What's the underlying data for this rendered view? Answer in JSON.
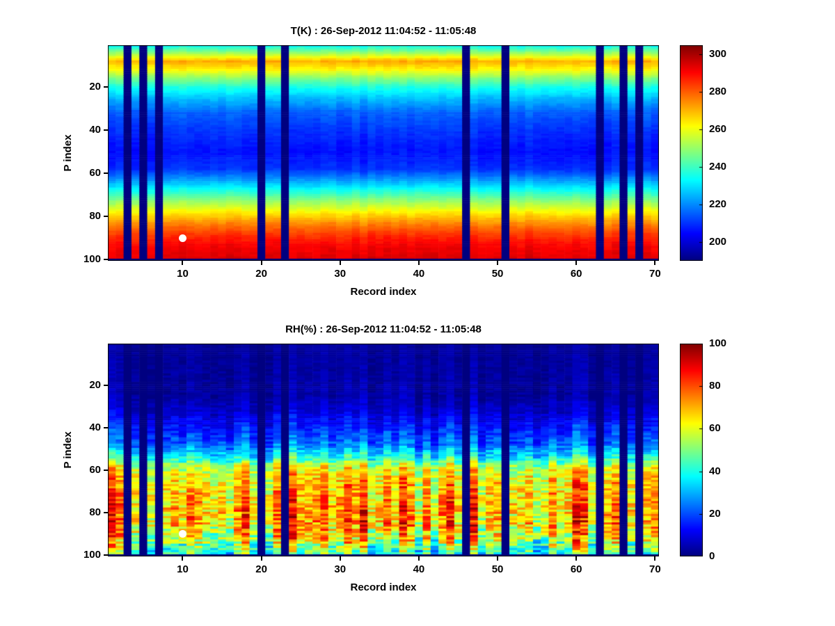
{
  "colors": {
    "background": "#ffffff",
    "axis": "#000000",
    "text": "#000000",
    "marker": "#ffffff"
  },
  "chart_data": [
    {
      "type": "heatmap",
      "id": "temperature",
      "title": "T(K) : 26-Sep-2012 11:04:52 - 11:05:48",
      "xlabel": "Record index",
      "ylabel": "P index",
      "x_ticks": [
        10,
        20,
        30,
        40,
        50,
        60,
        70
      ],
      "y_ticks": [
        20,
        40,
        60,
        80,
        100
      ],
      "x_range": [
        1,
        70
      ],
      "y_range": [
        1,
        100
      ],
      "n_records": 70,
      "n_levels": 100,
      "colormap": "jet",
      "clim": [
        190,
        305
      ],
      "colorbar_ticks": [
        200,
        220,
        240,
        260,
        280,
        300
      ],
      "missing_records": [
        3,
        5,
        7,
        20,
        23,
        46,
        51,
        63,
        66,
        68
      ],
      "missing_bottom_rows": 1,
      "marker": {
        "record": 10,
        "p_index": 90,
        "color": "#ffffff"
      },
      "profile": {
        "comment": "vertical T(K) profile vs P index, interpolated per row",
        "p_index": [
          1,
          4,
          8,
          12,
          16,
          20,
          25,
          32,
          42,
          50,
          58,
          63,
          68,
          73,
          78,
          83,
          88,
          93,
          99
        ],
        "value": [
          235,
          250,
          271,
          262,
          248,
          236,
          226,
          215,
          209,
          206,
          210,
          222,
          236,
          250,
          263,
          275,
          284,
          291,
          294
        ]
      },
      "noise": {
        "p_index": [
          1,
          100
        ],
        "amplitude": [
          2,
          2
        ]
      }
    },
    {
      "type": "heatmap",
      "id": "relative-humidity",
      "title": "RH(%) : 26-Sep-2012 11:04:52 - 11:05:48",
      "xlabel": "Record index",
      "ylabel": "P index",
      "x_ticks": [
        10,
        20,
        30,
        40,
        50,
        60,
        70
      ],
      "y_ticks": [
        20,
        40,
        60,
        80,
        100
      ],
      "x_range": [
        1,
        70
      ],
      "y_range": [
        1,
        100
      ],
      "n_records": 70,
      "n_levels": 100,
      "colormap": "jet",
      "clim": [
        0,
        100
      ],
      "colorbar_ticks": [
        0,
        20,
        40,
        60,
        80,
        100
      ],
      "missing_records": [
        3,
        5,
        7,
        20,
        23,
        46,
        51,
        63,
        66,
        68
      ],
      "missing_bottom_rows": 1,
      "marker": {
        "record": 10,
        "p_index": 90,
        "color": "#ffffff"
      },
      "profile": {
        "comment": "vertical RH(%) profile vs P index, interpolated per row",
        "p_index": [
          1,
          25,
          33,
          40,
          48,
          54,
          58,
          63,
          70,
          78,
          85,
          92,
          97,
          99
        ],
        "value": [
          3,
          4,
          9,
          16,
          24,
          40,
          58,
          66,
          70,
          73,
          72,
          62,
          50,
          45
        ]
      },
      "noise": {
        "p_index": [
          1,
          30,
          40,
          50,
          56,
          60,
          70,
          85,
          95,
          100
        ],
        "amplitude": [
          2,
          4,
          7,
          9,
          12,
          14,
          16,
          20,
          22,
          15
        ]
      }
    }
  ]
}
